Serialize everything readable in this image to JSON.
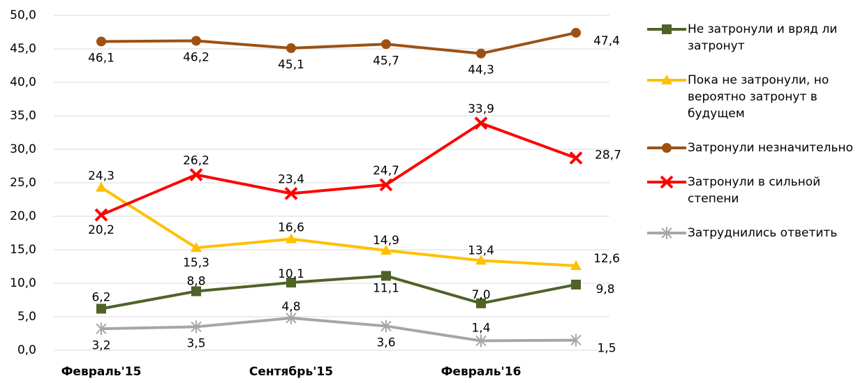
{
  "chart_data": {
    "type": "line",
    "categories": [
      "Февраль'15",
      null,
      "Сентябрь'15",
      null,
      "Февраль'16",
      null
    ],
    "ylim": [
      0,
      50
    ],
    "yticks": [
      {
        "value": 0,
        "label": "0,0"
      },
      {
        "value": 5,
        "label": "5,0"
      },
      {
        "value": 10,
        "label": "10,0"
      },
      {
        "value": 15,
        "label": "15,0"
      },
      {
        "value": 20,
        "label": "20,0"
      },
      {
        "value": 25,
        "label": "25,0"
      },
      {
        "value": 30,
        "label": "30,0"
      },
      {
        "value": 35,
        "label": "35,0"
      },
      {
        "value": 40,
        "label": "40,0"
      },
      {
        "value": 45,
        "label": "45,0"
      },
      {
        "value": 50,
        "label": "50,0"
      }
    ],
    "grid": true,
    "legend": "right",
    "series": [
      {
        "name": "Не затронули и вряд ли затронут",
        "color": "#4f6228",
        "marker": "square",
        "values": [
          6.2,
          8.8,
          10.1,
          11.1,
          7.0,
          9.8
        ],
        "value_labels": [
          "6,2",
          "8,8",
          "10,1",
          "11,1",
          "7,0",
          "9,8"
        ]
      },
      {
        "name": "Пока не затронули, но вероятно затронут в будущем",
        "color": "#ffc000",
        "marker": "triangle",
        "values": [
          24.3,
          15.3,
          16.6,
          14.9,
          13.4,
          12.6
        ],
        "value_labels": [
          "24,3",
          "15,3",
          "16,6",
          "14,9",
          "13,4",
          "12,6"
        ]
      },
      {
        "name": "Затронули незначительно",
        "color": "#9c5113",
        "marker": "circle",
        "values": [
          46.1,
          46.2,
          45.1,
          45.7,
          44.3,
          47.4
        ],
        "value_labels": [
          "46,1",
          "46,2",
          "45,1",
          "45,7",
          "44,3",
          "47,4"
        ]
      },
      {
        "name": "Затронули в сильной степени",
        "color": "#ff0000",
        "marker": "x",
        "values": [
          20.2,
          26.2,
          23.4,
          24.7,
          33.9,
          28.7
        ],
        "value_labels": [
          "20,2",
          "26,2",
          "23,4",
          "24,7",
          "33,9",
          "28,7"
        ]
      },
      {
        "name": "Затруднились ответить",
        "color": "#a6a6a6",
        "marker": "asterisk",
        "values": [
          3.2,
          3.5,
          4.8,
          3.6,
          1.4,
          1.5
        ],
        "value_labels": [
          "3,2",
          "3,5",
          "4,8",
          "3,6",
          "1,4",
          "1,5"
        ]
      }
    ]
  }
}
